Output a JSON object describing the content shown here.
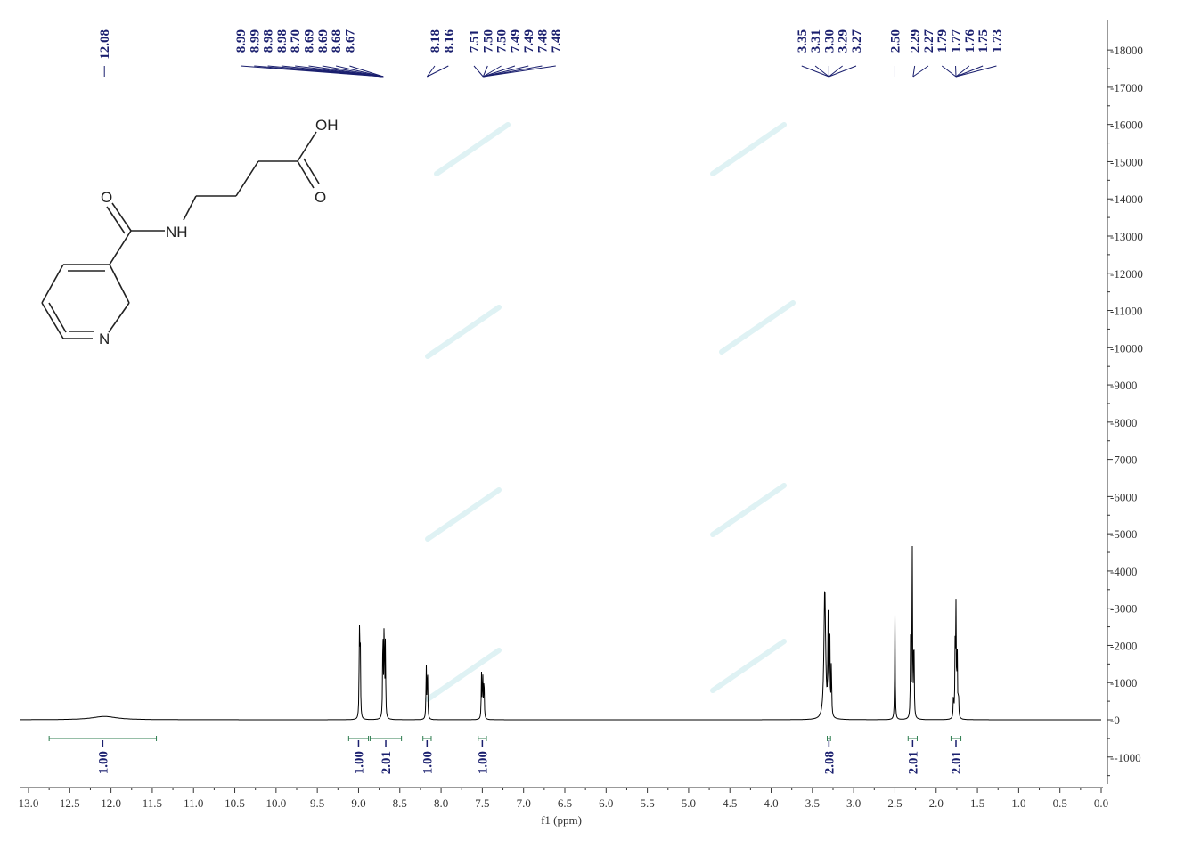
{
  "chart_data": {
    "type": "line",
    "xlabel": "f1 (ppm)",
    "ylabel": "",
    "xlim": [
      13.0,
      0.0
    ],
    "ylim": [
      -1800,
      18500
    ],
    "x_ticks": [
      "13.0",
      "12.5",
      "12.0",
      "11.5",
      "11.0",
      "10.5",
      "10.0",
      "9.5",
      "9.0",
      "8.5",
      "8.0",
      "7.5",
      "7.0",
      "6.5",
      "6.0",
      "5.5",
      "5.0",
      "4.5",
      "4.0",
      "3.5",
      "3.0",
      "2.5",
      "2.0",
      "1.5",
      "1.0",
      "0.5",
      "0.0"
    ],
    "y_ticks": [
      "18000",
      "17000",
      "16000",
      "15000",
      "14000",
      "13000",
      "12000",
      "11000",
      "10000",
      "9000",
      "8000",
      "7000",
      "6000",
      "5000",
      "4000",
      "3000",
      "2000",
      "1000",
      "0",
      "-1000"
    ],
    "peak_groups": [
      {
        "anchor": 12.08,
        "labels": [
          "12.08"
        ]
      },
      {
        "anchor": 8.7,
        "labels": [
          "8.99",
          "8.99",
          "8.98",
          "8.98",
          "8.70",
          "8.69",
          "8.69",
          "8.68",
          "8.67"
        ]
      },
      {
        "anchor": 8.17,
        "labels": [
          "8.18",
          "8.16"
        ]
      },
      {
        "anchor": 7.49,
        "labels": [
          "7.51",
          "7.50",
          "7.50",
          "7.49",
          "7.49",
          "7.48",
          "7.48"
        ]
      },
      {
        "anchor": 3.3,
        "labels": [
          "3.35",
          "3.31",
          "3.30",
          "3.29",
          "3.27"
        ]
      },
      {
        "anchor": 2.5,
        "labels": [
          "2.50"
        ]
      },
      {
        "anchor": 2.28,
        "labels": [
          "2.29",
          "2.27"
        ]
      },
      {
        "anchor": 1.76,
        "labels": [
          "1.79",
          "1.77",
          "1.76",
          "1.75",
          "1.73"
        ]
      }
    ],
    "integrals": [
      {
        "from": 12.75,
        "to": 11.45,
        "value": "1.00"
      },
      {
        "from": 9.12,
        "to": 8.88,
        "value": "1.00"
      },
      {
        "from": 8.86,
        "to": 8.48,
        "value": "2.01"
      },
      {
        "from": 8.22,
        "to": 8.12,
        "value": "1.00"
      },
      {
        "from": 7.55,
        "to": 7.45,
        "value": "1.00"
      },
      {
        "from": 3.32,
        "to": 3.28,
        "value": "2.08"
      },
      {
        "from": 2.34,
        "to": 2.23,
        "value": "2.01"
      },
      {
        "from": 1.82,
        "to": 1.7,
        "value": "2.01"
      }
    ],
    "peaks": [
      {
        "ppm": 12.08,
        "height": 90,
        "width": 0.18
      },
      {
        "ppm": 8.99,
        "height": 2350,
        "width": 0.004
      },
      {
        "ppm": 8.98,
        "height": 2300,
        "width": 0.004
      },
      {
        "ppm": 8.705,
        "height": 2550,
        "width": 0.004
      },
      {
        "ppm": 8.69,
        "height": 2600,
        "width": 0.004
      },
      {
        "ppm": 8.675,
        "height": 2000,
        "width": 0.004
      },
      {
        "ppm": 8.18,
        "height": 1450,
        "width": 0.004
      },
      {
        "ppm": 8.165,
        "height": 1480,
        "width": 0.004
      },
      {
        "ppm": 7.51,
        "height": 1200,
        "width": 0.004
      },
      {
        "ppm": 7.495,
        "height": 1230,
        "width": 0.004
      },
      {
        "ppm": 7.48,
        "height": 1180,
        "width": 0.004
      },
      {
        "ppm": 3.35,
        "height": 3550,
        "width": 0.012
      },
      {
        "ppm": 3.31,
        "height": 2600,
        "width": 0.004
      },
      {
        "ppm": 3.29,
        "height": 2650,
        "width": 0.004
      },
      {
        "ppm": 3.27,
        "height": 1500,
        "width": 0.004
      },
      {
        "ppm": 2.5,
        "height": 2850,
        "width": 0.004
      },
      {
        "ppm": 2.31,
        "height": 2150,
        "width": 0.004
      },
      {
        "ppm": 2.29,
        "height": 4750,
        "width": 0.004
      },
      {
        "ppm": 2.27,
        "height": 2400,
        "width": 0.004
      },
      {
        "ppm": 1.79,
        "height": 650,
        "width": 0.004
      },
      {
        "ppm": 1.77,
        "height": 1900,
        "width": 0.004
      },
      {
        "ppm": 1.76,
        "height": 2850,
        "width": 0.004
      },
      {
        "ppm": 1.745,
        "height": 1800,
        "width": 0.004
      },
      {
        "ppm": 1.73,
        "height": 650,
        "width": 0.004
      }
    ]
  },
  "molecule": {
    "atoms": [
      "OH",
      "O",
      "O",
      "NH",
      "N"
    ]
  },
  "colors": {
    "spectrum": "#000000",
    "peak_label": "#1a1f6e",
    "integral": "#2e7d4f",
    "axis": "#333333"
  }
}
